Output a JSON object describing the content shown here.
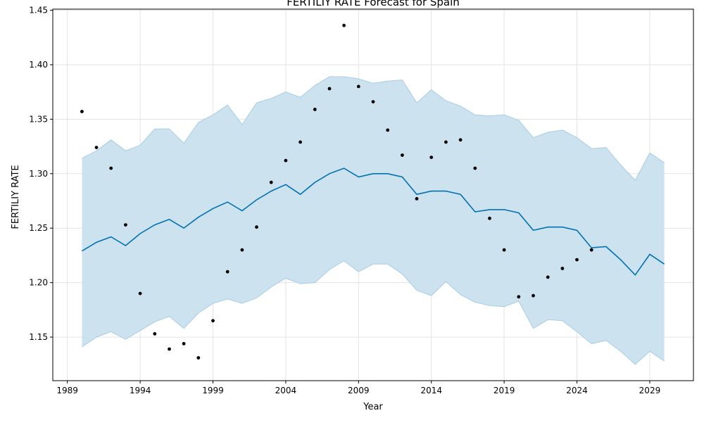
{
  "chart_data": {
    "type": "line",
    "title": "FERTILIY RATE Forecast for Spain",
    "xlabel": "Year",
    "ylabel": "FERTILIY RATE",
    "xlim": [
      1988.0,
      2032.0
    ],
    "ylim": [
      1.11,
      1.451
    ],
    "xticks": [
      1989,
      1994,
      1999,
      2004,
      2009,
      2014,
      2019,
      2024,
      2029
    ],
    "yticks": [
      1.15,
      1.2,
      1.25,
      1.3,
      1.35,
      1.4,
      1.45
    ],
    "ytick_labels": [
      "1.15",
      "1.20",
      "1.25",
      "1.30",
      "1.35",
      "1.40",
      "1.45"
    ],
    "grid": true,
    "colors": {
      "forecast": "#0072B2",
      "interval_fill": "#cde2ef",
      "interval_edge": "#a6cde3",
      "observed": "#000000"
    },
    "observed": {
      "x": [
        1990,
        1991,
        1992,
        1993,
        1994,
        1995,
        1996,
        1997,
        1998,
        1999,
        2000,
        2001,
        2002,
        2003,
        2004,
        2005,
        2006,
        2007,
        2008,
        2009,
        2010,
        2011,
        2012,
        2013,
        2014,
        2015,
        2016,
        2017,
        2018,
        2019,
        2020,
        2021,
        2022,
        2023,
        2024,
        2025
      ],
      "y": [
        1.357,
        1.324,
        1.305,
        1.253,
        1.19,
        1.153,
        1.139,
        1.144,
        1.131,
        1.165,
        1.21,
        1.23,
        1.251,
        1.292,
        1.312,
        1.329,
        1.359,
        1.378,
        1.436,
        1.38,
        1.366,
        1.34,
        1.317,
        1.277,
        1.315,
        1.329,
        1.331,
        1.305,
        1.259,
        1.23,
        1.187,
        1.188,
        1.205,
        1.213,
        1.221,
        1.23
      ]
    },
    "forecast": {
      "x": [
        1990,
        1991,
        1992,
        1993,
        1994,
        1995,
        1996,
        1997,
        1998,
        1999,
        2000,
        2001,
        2002,
        2003,
        2004,
        2005,
        2006,
        2007,
        2008,
        2009,
        2010,
        2011,
        2012,
        2013,
        2014,
        2015,
        2016,
        2017,
        2018,
        2019,
        2020,
        2021,
        2022,
        2023,
        2024,
        2025,
        2026,
        2027,
        2028,
        2029,
        2030
      ],
      "yhat": [
        1.229,
        1.237,
        1.242,
        1.234,
        1.245,
        1.253,
        1.258,
        1.25,
        1.26,
        1.268,
        1.274,
        1.266,
        1.276,
        1.284,
        1.29,
        1.281,
        1.292,
        1.3,
        1.305,
        1.297,
        1.3,
        1.3,
        1.297,
        1.281,
        1.284,
        1.284,
        1.281,
        1.265,
        1.267,
        1.267,
        1.264,
        1.248,
        1.251,
        1.251,
        1.248,
        1.232,
        1.233,
        1.221,
        1.207,
        1.226,
        1.217
      ],
      "upper": [
        1.314,
        1.321,
        1.331,
        1.321,
        1.326,
        1.341,
        1.341,
        1.328,
        1.347,
        1.354,
        1.363,
        1.345,
        1.365,
        1.369,
        1.375,
        1.37,
        1.381,
        1.389,
        1.389,
        1.387,
        1.383,
        1.385,
        1.386,
        1.365,
        1.377,
        1.367,
        1.362,
        1.354,
        1.353,
        1.354,
        1.349,
        1.333,
        1.338,
        1.34,
        1.333,
        1.323,
        1.324,
        1.308,
        1.294,
        1.319,
        1.31
      ],
      "lower": [
        1.141,
        1.15,
        1.155,
        1.148,
        1.156,
        1.164,
        1.169,
        1.158,
        1.172,
        1.181,
        1.185,
        1.181,
        1.186,
        1.196,
        1.204,
        1.199,
        1.2,
        1.212,
        1.22,
        1.21,
        1.217,
        1.217,
        1.208,
        1.193,
        1.188,
        1.201,
        1.189,
        1.182,
        1.179,
        1.178,
        1.183,
        1.158,
        1.166,
        1.165,
        1.155,
        1.144,
        1.147,
        1.137,
        1.125,
        1.137,
        1.128
      ]
    }
  }
}
